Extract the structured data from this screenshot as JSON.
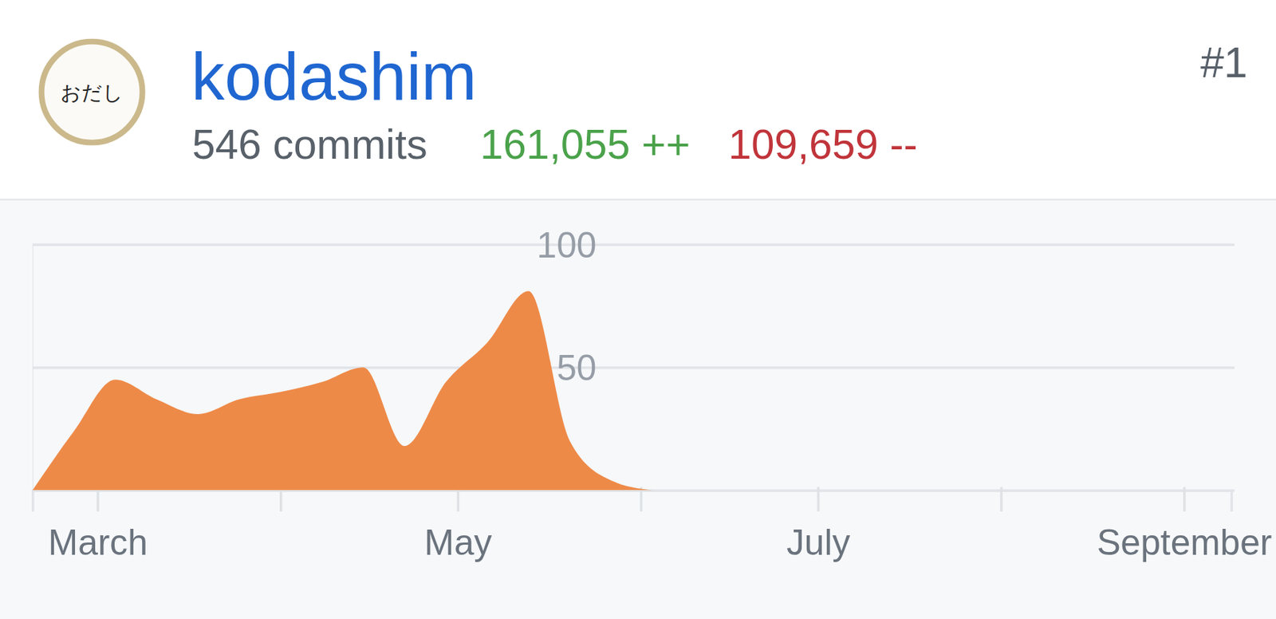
{
  "header": {
    "avatar_text": "おだし",
    "username": "kodashim",
    "commits": "546 commits",
    "additions": "161,055 ++",
    "deletions": "109,659 --",
    "rank": "#1"
  },
  "chart_data": {
    "type": "area",
    "color": "#ee8a48",
    "grid": true,
    "x": [
      0,
      1,
      2,
      3,
      4,
      5,
      6,
      7,
      8,
      9,
      10,
      11,
      12,
      13,
      14,
      15
    ],
    "values": [
      0,
      24,
      45,
      37,
      31,
      37,
      40,
      44,
      50,
      18,
      44,
      60,
      81,
      20,
      4,
      0
    ],
    "xlim": [
      0,
      29
    ],
    "xticks": [
      {
        "value": 1.571,
        "label": "March"
      },
      {
        "value": 6,
        "label": null
      },
      {
        "value": 10.286,
        "label": "May"
      },
      {
        "value": 14.714,
        "label": null
      },
      {
        "value": 19,
        "label": "July"
      },
      {
        "value": 23.429,
        "label": null
      },
      {
        "value": 27.857,
        "label": "September"
      }
    ],
    "ylim": [
      0,
      100
    ],
    "yticks": [
      {
        "value": 0,
        "label": null
      },
      50,
      100
    ]
  }
}
